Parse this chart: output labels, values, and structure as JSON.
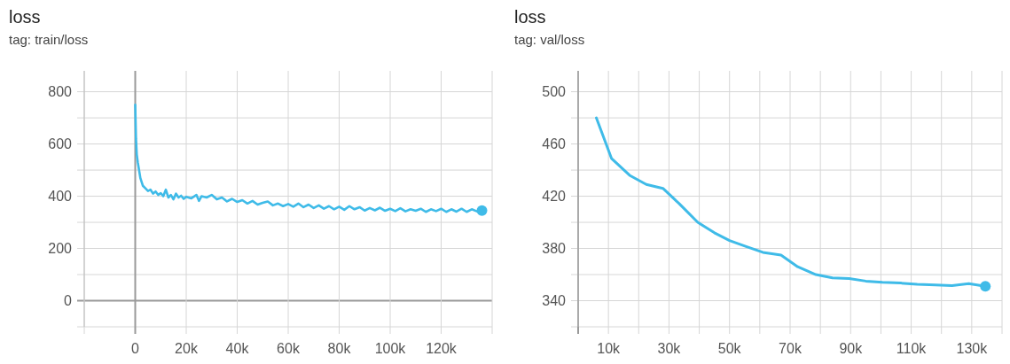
{
  "chart_data": [
    {
      "type": "line",
      "title": "loss",
      "subtitle": "tag: train/loss",
      "xlim": [
        -20000,
        140000
      ],
      "xticks": [
        {
          "value": -20000,
          "label": null
        },
        0,
        {
          "value": 20000,
          "label": "20k"
        },
        {
          "value": 40000,
          "label": "40k"
        },
        {
          "value": 60000,
          "label": "60k"
        },
        {
          "value": 80000,
          "label": "80k"
        },
        {
          "value": 100000,
          "label": "100k"
        },
        {
          "value": 120000,
          "label": "120k"
        },
        {
          "value": 140000,
          "label": null
        }
      ],
      "ylim": [
        -100,
        880
      ],
      "yticks": [
        {
          "value": -100,
          "label": null
        },
        0,
        {
          "value": 100,
          "label": null
        },
        200,
        {
          "value": 300,
          "label": null
        },
        400,
        {
          "value": 500,
          "label": null
        },
        600,
        {
          "value": 700,
          "label": null
        },
        800
      ],
      "grid": true,
      "series": [
        {
          "color": "#3fbbe8",
          "x": [
            0,
            300,
            600,
            1000,
            1500,
            2000,
            2500,
            3000,
            4000,
            5000,
            6000,
            7000,
            8000,
            9000,
            10000,
            11000,
            12000,
            13000,
            14000,
            15000,
            16000,
            17000,
            18000,
            19000,
            20000,
            22000,
            24000,
            25000,
            26000,
            28000,
            30000,
            32000,
            34000,
            36000,
            38000,
            40000,
            42000,
            44000,
            46000,
            48000,
            50000,
            52000,
            54000,
            56000,
            58000,
            60000,
            62000,
            64000,
            66000,
            68000,
            70000,
            72000,
            74000,
            76000,
            78000,
            80000,
            82000,
            84000,
            86000,
            88000,
            90000,
            92000,
            94000,
            96000,
            98000,
            100000,
            102000,
            104000,
            106000,
            108000,
            110000,
            112000,
            114000,
            116000,
            118000,
            120000,
            122000,
            124000,
            126000,
            128000,
            130000,
            132000,
            134000,
            136000
          ],
          "values": [
            750,
            620,
            560,
            530,
            500,
            470,
            455,
            440,
            430,
            420,
            425,
            410,
            418,
            405,
            412,
            400,
            425,
            395,
            405,
            388,
            410,
            395,
            402,
            390,
            398,
            392,
            405,
            382,
            400,
            395,
            405,
            388,
            395,
            380,
            390,
            378,
            385,
            372,
            382,
            368,
            375,
            380,
            365,
            372,
            362,
            370,
            360,
            372,
            358,
            368,
            355,
            365,
            352,
            362,
            350,
            360,
            348,
            362,
            350,
            358,
            345,
            355,
            346,
            356,
            344,
            352,
            343,
            354,
            342,
            350,
            344,
            352,
            340,
            350,
            343,
            352,
            340,
            350,
            341,
            352,
            340,
            350,
            342,
            345
          ]
        },
        {
          "type": "scatter",
          "color": "#3fbbe8",
          "x": [
            136000
          ],
          "values": [
            345
          ]
        }
      ]
    },
    {
      "type": "line",
      "title": "loss",
      "subtitle": "tag: val/loss",
      "xlim": [
        0,
        140000
      ],
      "xticks": [
        {
          "value": 0,
          "label": null
        },
        {
          "value": 10000,
          "label": "10k"
        },
        {
          "value": 20000,
          "label": null
        },
        {
          "value": 30000,
          "label": "30k"
        },
        {
          "value": 40000,
          "label": null
        },
        {
          "value": 50000,
          "label": "50k"
        },
        {
          "value": 60000,
          "label": null
        },
        {
          "value": 70000,
          "label": "70k"
        },
        {
          "value": 80000,
          "label": null
        },
        {
          "value": 90000,
          "label": "90k"
        },
        {
          "value": 100000,
          "label": null
        },
        {
          "value": 110000,
          "label": "110k"
        },
        {
          "value": 120000,
          "label": null
        },
        {
          "value": 130000,
          "label": "130k"
        },
        {
          "value": 140000,
          "label": null
        }
      ],
      "ylim": [
        320,
        516
      ],
      "yticks": [
        {
          "value": 320,
          "label": null
        },
        340,
        {
          "value": 360,
          "label": null
        },
        380,
        {
          "value": 400,
          "label": null
        },
        420,
        {
          "value": 440,
          "label": null
        },
        460,
        {
          "value": 480,
          "label": null
        },
        500
      ],
      "grid": true,
      "series": [
        {
          "color": "#3fbbe8",
          "x": [
            6000,
            11000,
            17000,
            22500,
            28000,
            33500,
            39500,
            45000,
            50000,
            55500,
            61000,
            67000,
            72500,
            78500,
            84000,
            89500,
            95000,
            100500,
            106500,
            112000,
            118000,
            123500,
            129000,
            134500
          ],
          "values": [
            480,
            449,
            436,
            429,
            426,
            414,
            400,
            392,
            386,
            381.5,
            377,
            375,
            366,
            360,
            357.5,
            357,
            355,
            354,
            353.5,
            352.5,
            352,
            351.5,
            353,
            351
          ]
        },
        {
          "type": "scatter",
          "color": "#3fbbe8",
          "x": [
            134500
          ],
          "values": [
            351
          ]
        }
      ]
    }
  ]
}
